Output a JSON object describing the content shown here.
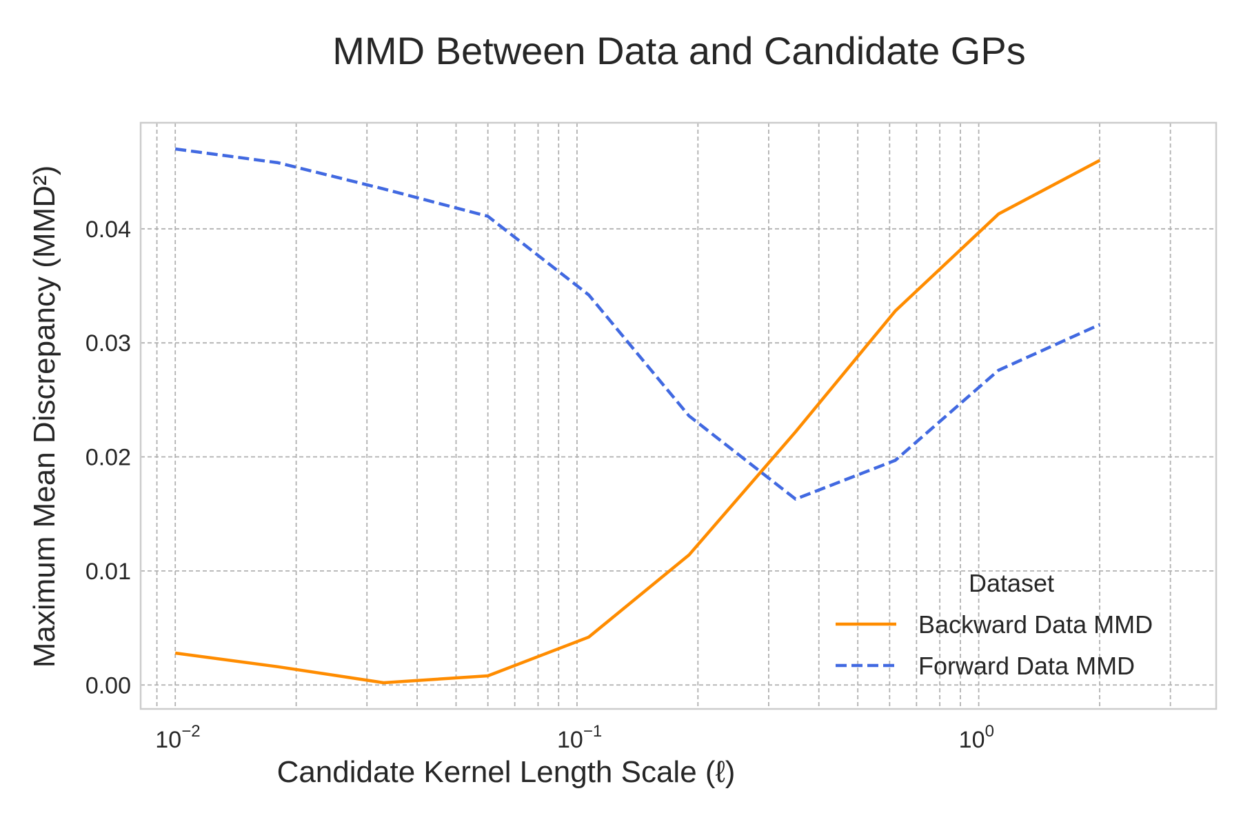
{
  "chart_data": {
    "type": "line",
    "title": "MMD Between Data and Candidate GPs",
    "xlabel": "Candidate Kernel Length Scale (ℓ)",
    "ylabel": "Maximum Mean Discrepancy (MMD²)",
    "x_scale": "log",
    "xlim": [
      0.0082,
      3.9
    ],
    "ylim": [
      -0.0021,
      0.0493
    ],
    "x_major_ticks": [
      {
        "value": 0.01,
        "base": "10",
        "exp": "−2"
      },
      {
        "value": 0.1,
        "base": "10",
        "exp": "−1"
      },
      {
        "value": 1,
        "base": "10",
        "exp": "0"
      }
    ],
    "y_ticks": [
      {
        "value": 0.0,
        "label": "0.00"
      },
      {
        "value": 0.01,
        "label": "0.01"
      },
      {
        "value": 0.02,
        "label": "0.02"
      },
      {
        "value": 0.03,
        "label": "0.03"
      },
      {
        "value": 0.04,
        "label": "0.04"
      }
    ],
    "grid": true,
    "grid_style": "dashed",
    "legend": {
      "title": "Dataset",
      "position": "lower-right"
    },
    "series": [
      {
        "name": "Backward Data MMD",
        "color": "#ff8c00",
        "style": "solid",
        "x": [
          0.01,
          0.018,
          0.033,
          0.06,
          0.107,
          0.19,
          0.35,
          0.62,
          1.12,
          2.0
        ],
        "y": [
          0.0028,
          0.0016,
          0.0002,
          0.0008,
          0.0042,
          0.0114,
          0.0222,
          0.0328,
          0.0413,
          0.046
        ]
      },
      {
        "name": "Forward Data MMD",
        "color": "#4169e1",
        "style": "dashed",
        "x": [
          0.01,
          0.018,
          0.033,
          0.06,
          0.107,
          0.19,
          0.35,
          0.62,
          1.12,
          2.0
        ],
        "y": [
          0.047,
          0.0458,
          0.0435,
          0.0411,
          0.0342,
          0.0236,
          0.0163,
          0.0197,
          0.0276,
          0.0316
        ]
      }
    ]
  }
}
